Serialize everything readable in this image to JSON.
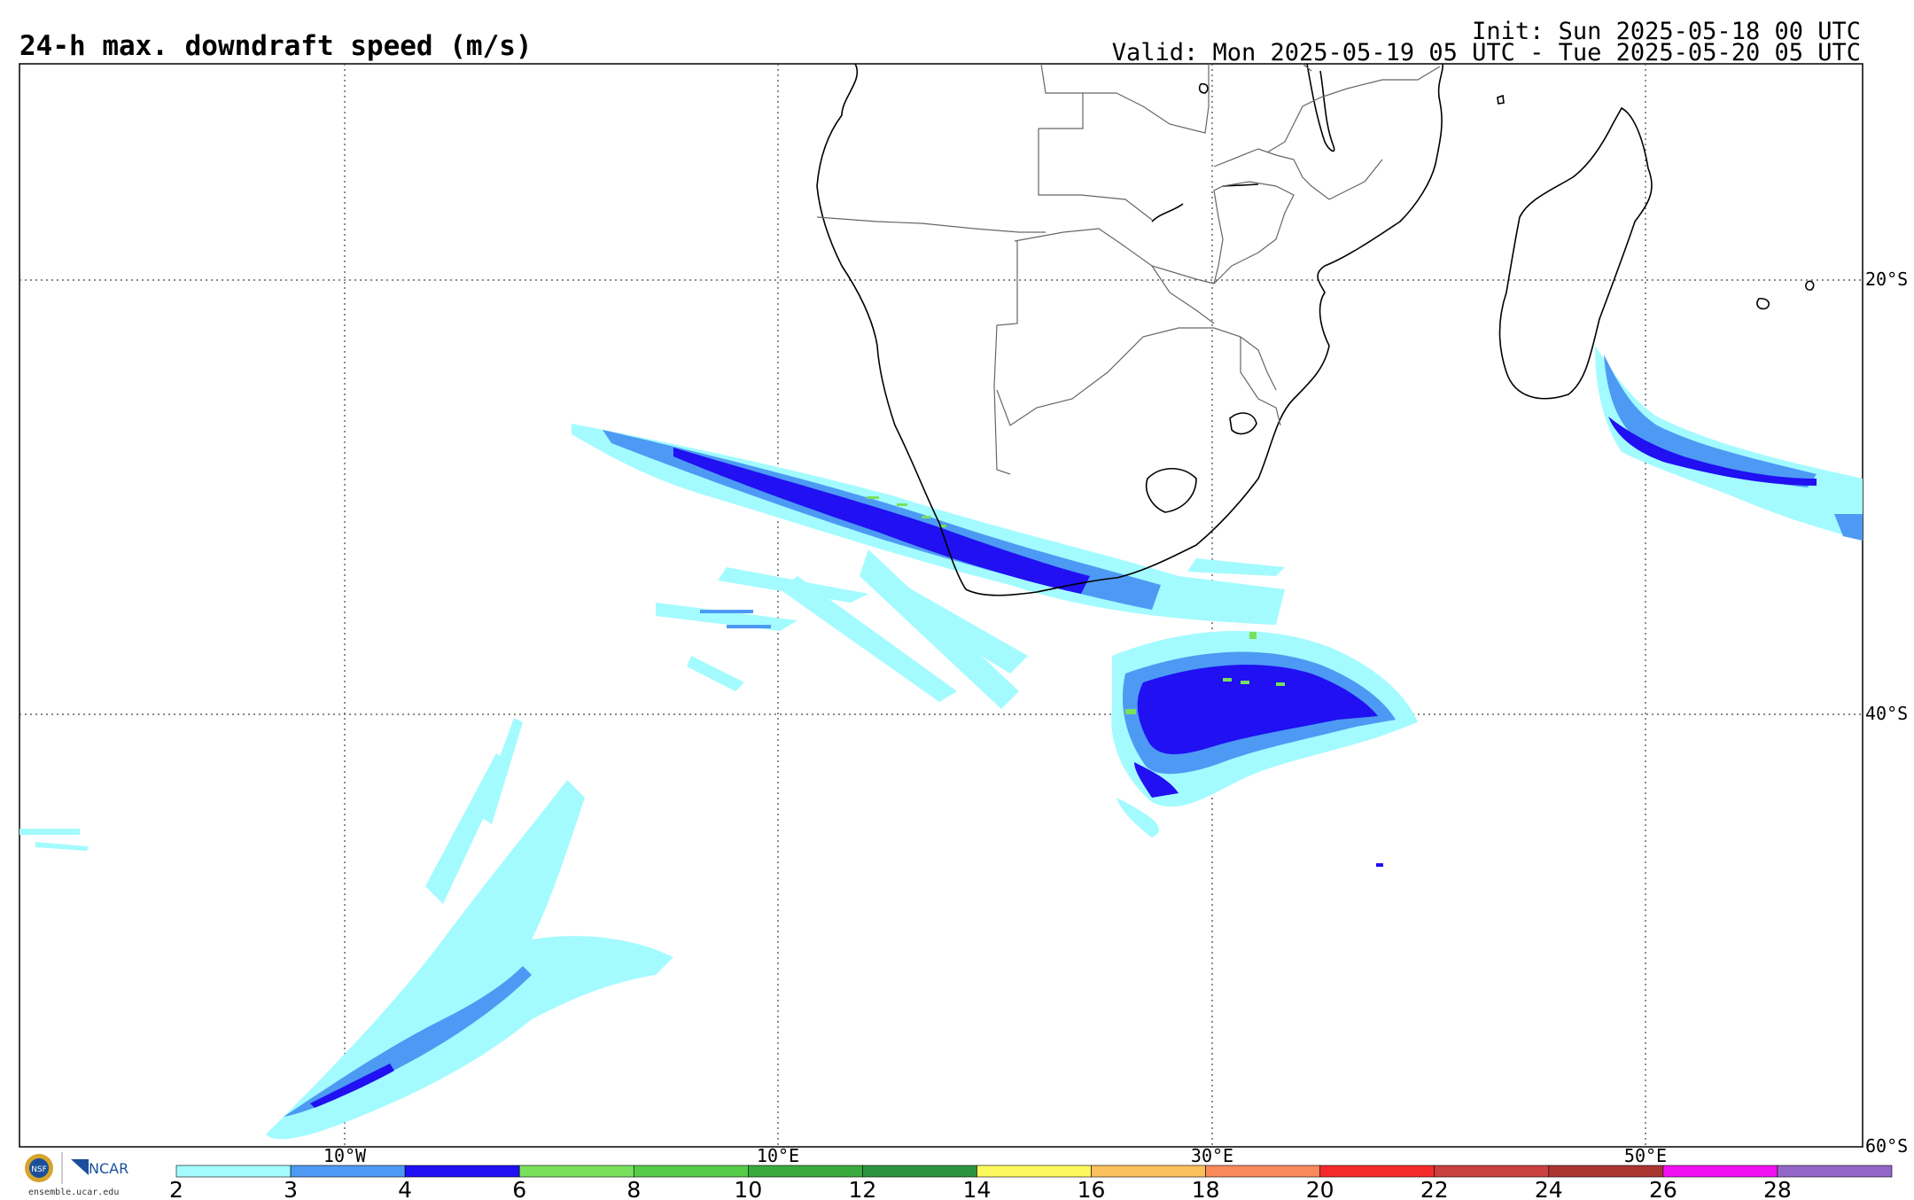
{
  "header": {
    "title": "24-h max. downdraft speed (m/s)",
    "init": "Init: Sun 2025-05-18 00 UTC",
    "valid": "Valid: Mon 2025-05-19 05 UTC - Tue 2025-05-20 05 UTC"
  },
  "map": {
    "lat_labels": [
      "20°S",
      "40°S",
      "60°S"
    ],
    "lon_labels": [
      "10°W",
      "10°E",
      "30°E",
      "50°E"
    ],
    "land_outline_color": "#000000",
    "border_color": "#555555",
    "grid_style": "dotted"
  },
  "colorbar": {
    "ticks": [
      "2",
      "3",
      "4",
      "6",
      "8",
      "10",
      "12",
      "14",
      "16",
      "18",
      "20",
      "22",
      "24",
      "26",
      "28"
    ],
    "colors": [
      "#a3fbff",
      "#4d9af4",
      "#2010f2",
      "#78e05c",
      "#55cc48",
      "#3aaa3e",
      "#2c9440",
      "#fbf95d",
      "#fbc05c",
      "#f9895a",
      "#f42a2a",
      "#c9403f",
      "#a93531",
      "#f010f0",
      "#9266c8"
    ]
  },
  "logo": {
    "org": "NCAR",
    "url": "ensemble.ucar.edu"
  }
}
